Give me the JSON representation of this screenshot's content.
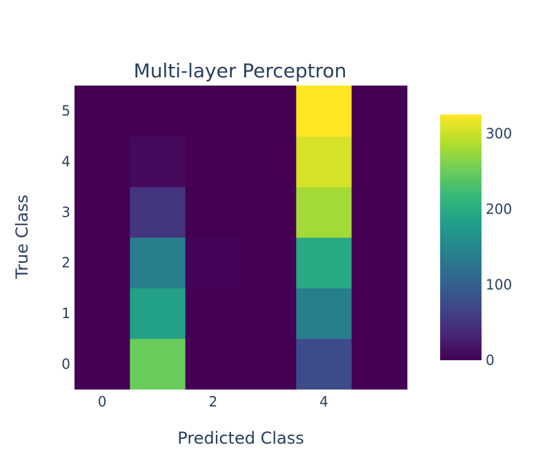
{
  "chart_data": {
    "type": "heatmap",
    "title": "Multi-layer Perceptron",
    "xlabel": "Predicted Class",
    "ylabel": "True Class",
    "x_categories": [
      0,
      1,
      2,
      3,
      4,
      5
    ],
    "y_categories": [
      0,
      1,
      2,
      3,
      4,
      5
    ],
    "x_tick_labels": [
      "0",
      "2",
      "4"
    ],
    "y_tick_labels": [
      "0",
      "1",
      "2",
      "3",
      "4",
      "5"
    ],
    "z": [
      [
        0,
        250,
        0,
        0,
        75,
        0
      ],
      [
        0,
        185,
        0,
        0,
        140,
        0
      ],
      [
        0,
        140,
        3,
        0,
        195,
        0
      ],
      [
        0,
        50,
        0,
        0,
        280,
        0
      ],
      [
        0,
        8,
        0,
        0,
        305,
        0
      ],
      [
        0,
        0,
        0,
        0,
        325,
        0
      ]
    ],
    "colorscale": "Viridis",
    "zmin": 0,
    "zmax": 325,
    "colorbar_ticks": [
      0,
      100,
      200,
      300
    ]
  }
}
